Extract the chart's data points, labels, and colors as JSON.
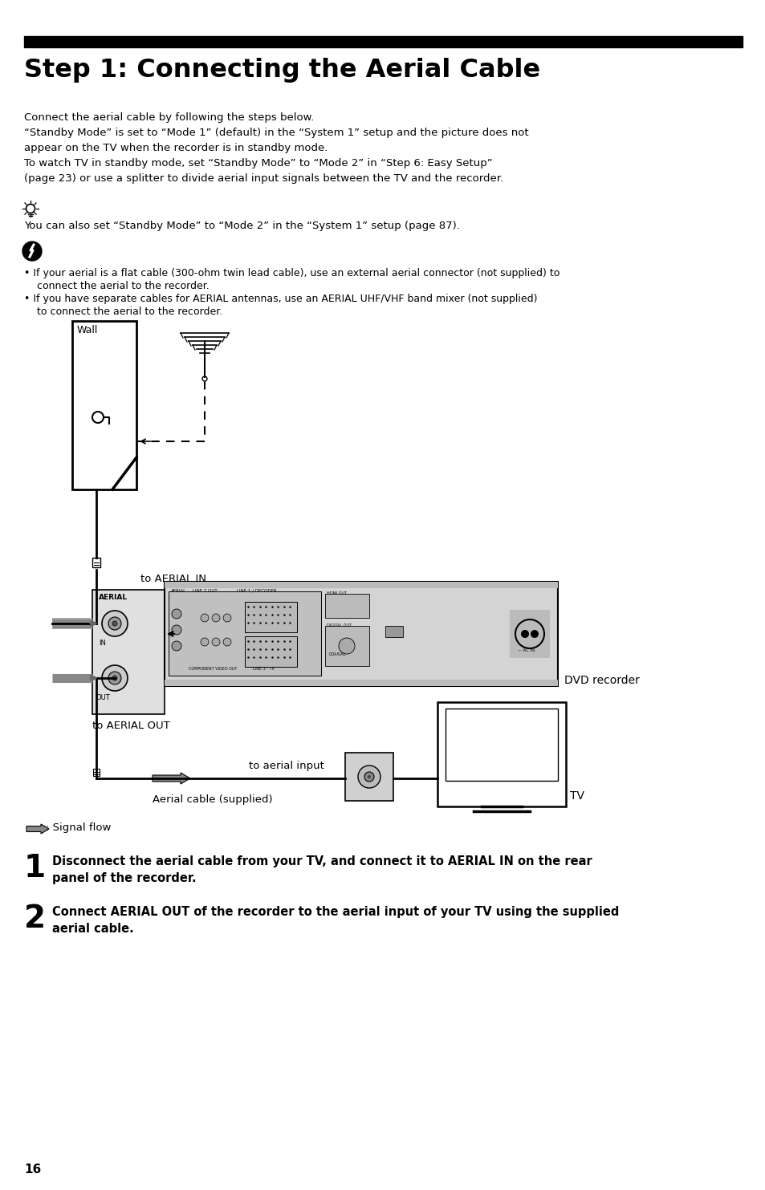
{
  "title": "Step 1: Connecting the Aerial Cable",
  "bg_color": "#ffffff",
  "text_color": "#000000",
  "page_number": "16",
  "body_text_1": "Connect the aerial cable by following the steps below.",
  "body_text_2": "“Standby Mode” is set to “Mode 1” (default) in the “System 1” setup and the picture does not",
  "body_text_3": "appear on the TV when the recorder is in standby mode.",
  "body_text_4": "To watch TV in standby mode, set “Standby Mode” to “Mode 2” in “Step 6: Easy Setup”",
  "body_text_5": "(page 23) or use a splitter to divide aerial input signals between the TV and the recorder.",
  "tip_text": "You can also set “Standby Mode” to “Mode 2” in the “System 1” setup (page 87).",
  "warn_text_1": "If your aerial is a flat cable (300-ohm twin lead cable), use an external aerial connector (not supplied) to",
  "warn_text_1b": "    connect the aerial to the recorder.",
  "warn_text_2": "If you have separate cables for AERIAL antennas, use an AERIAL UHF/VHF band mixer (not supplied)",
  "warn_text_2b": "    to connect the aerial to the recorder.",
  "label_wall": "Wall",
  "label_aerial_in": "to AERIAL IN",
  "label_aerial_out": "to AERIAL OUT",
  "label_aerial_input": "to aerial input",
  "label_aerial_cable": "Aerial cable (supplied)",
  "label_dvd": "DVD recorder",
  "label_tv": "TV",
  "label_signal": ": Signal flow",
  "step1_num": "1",
  "step1_text_bold": "Disconnect the aerial cable from your TV, and connect it to AERIAL IN on the rear\npanel of the recorder.",
  "step2_num": "2",
  "step2_text_bold": "Connect AERIAL OUT of the recorder to the aerial input of your TV using the supplied\naerial cable."
}
